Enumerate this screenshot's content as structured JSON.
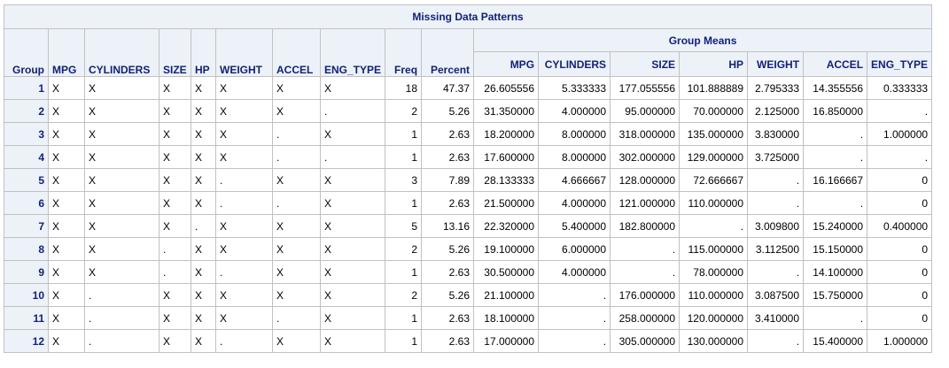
{
  "title": "Missing Data Patterns",
  "group_means_label": "Group Means",
  "pattern_headers": [
    "Group",
    "MPG",
    "CYLINDERS",
    "SIZE",
    "HP",
    "WEIGHT",
    "ACCEL",
    "ENG_TYPE",
    "Freq",
    "Percent"
  ],
  "means_headers": [
    "MPG",
    "CYLINDERS",
    "SIZE",
    "HP",
    "WEIGHT",
    "ACCEL",
    "ENG_TYPE"
  ],
  "rows": [
    [
      "1",
      "X",
      "X",
      "X",
      "X",
      "X",
      "X",
      "X",
      "18",
      "47.37",
      "26.605556",
      "5.333333",
      "177.055556",
      "101.888889",
      "2.795333",
      "14.355556",
      "0.333333"
    ],
    [
      "2",
      "X",
      "X",
      "X",
      "X",
      "X",
      "X",
      ".",
      "2",
      "5.26",
      "31.350000",
      "4.000000",
      "95.000000",
      "70.000000",
      "2.125000",
      "16.850000",
      "."
    ],
    [
      "3",
      "X",
      "X",
      "X",
      "X",
      "X",
      ".",
      "X",
      "1",
      "2.63",
      "18.200000",
      "8.000000",
      "318.000000",
      "135.000000",
      "3.830000",
      ".",
      "1.000000"
    ],
    [
      "4",
      "X",
      "X",
      "X",
      "X",
      "X",
      ".",
      ".",
      "1",
      "2.63",
      "17.600000",
      "8.000000",
      "302.000000",
      "129.000000",
      "3.725000",
      ".",
      "."
    ],
    [
      "5",
      "X",
      "X",
      "X",
      "X",
      ".",
      "X",
      "X",
      "3",
      "7.89",
      "28.133333",
      "4.666667",
      "128.000000",
      "72.666667",
      ".",
      "16.166667",
      "0"
    ],
    [
      "6",
      "X",
      "X",
      "X",
      "X",
      ".",
      ".",
      "X",
      "1",
      "2.63",
      "21.500000",
      "4.000000",
      "121.000000",
      "110.000000",
      ".",
      ".",
      "0"
    ],
    [
      "7",
      "X",
      "X",
      "X",
      ".",
      "X",
      "X",
      "X",
      "5",
      "13.16",
      "22.320000",
      "5.400000",
      "182.800000",
      ".",
      "3.009800",
      "15.240000",
      "0.400000"
    ],
    [
      "8",
      "X",
      "X",
      ".",
      "X",
      "X",
      "X",
      "X",
      "2",
      "5.26",
      "19.100000",
      "6.000000",
      ".",
      "115.000000",
      "3.112500",
      "15.150000",
      "0"
    ],
    [
      "9",
      "X",
      "X",
      ".",
      "X",
      ".",
      "X",
      "X",
      "1",
      "2.63",
      "30.500000",
      "4.000000",
      ".",
      "78.000000",
      ".",
      "14.100000",
      "0"
    ],
    [
      "10",
      "X",
      ".",
      "X",
      "X",
      "X",
      "X",
      "X",
      "2",
      "5.26",
      "21.100000",
      ".",
      "176.000000",
      "110.000000",
      "3.087500",
      "15.750000",
      "0"
    ],
    [
      "11",
      "X",
      ".",
      "X",
      "X",
      "X",
      ".",
      "X",
      "1",
      "2.63",
      "18.100000",
      ".",
      "258.000000",
      "120.000000",
      "3.410000",
      ".",
      "0"
    ],
    [
      "12",
      "X",
      ".",
      "X",
      "X",
      ".",
      "X",
      "X",
      "1",
      "2.63",
      "17.000000",
      ".",
      "305.000000",
      "130.000000",
      ".",
      "15.400000",
      "1.000000"
    ]
  ]
}
